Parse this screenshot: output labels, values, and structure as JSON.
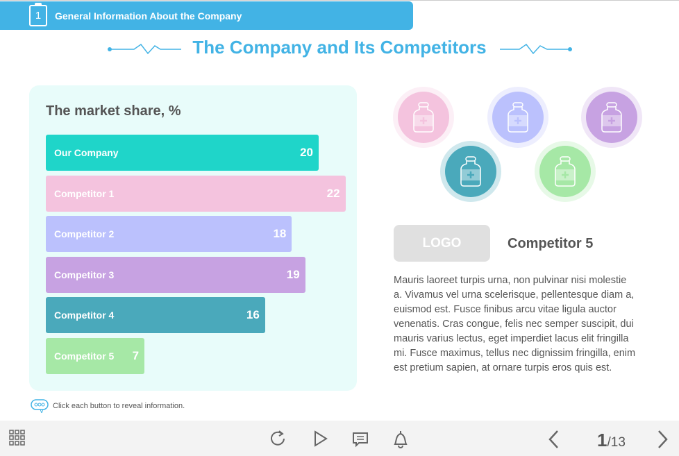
{
  "header": {
    "step": "1",
    "title": "General Information About the Company"
  },
  "title": "The Company and Its Competitors",
  "chart_data": {
    "type": "bar",
    "title": "The market share, %",
    "categories": [
      "Our Company",
      "Competitor 1",
      "Competitor 2",
      "Competitor 3",
      "Competitor 4",
      "Competitor 5"
    ],
    "values": [
      20,
      22,
      18,
      19,
      16,
      7
    ],
    "colors": [
      "#1fd5c9",
      "#f4c3de",
      "#bbc1fd",
      "#c7a2e2",
      "#4aa9bb",
      "#a6e8a6"
    ]
  },
  "competitors": {
    "colors": [
      "#f4c3de",
      "#bbc1fd",
      "#c7a2e2",
      "#4aa9bb",
      "#a6e8a6"
    ]
  },
  "detail": {
    "logo": "LOGO",
    "name": "Competitor 5",
    "text": "Mauris laoreet turpis urna, non pulvinar nisi molestie a. Vivamus vel urna scelerisque, pellentesque diam a, euismod est. Fusce finibus arcu vitae ligula auctor venenatis. Cras congue, felis nec semper suscipit, dui mauris varius lectus, eget imperdiet lacus elit fringilla mi. Fusce maximus, tellus nec dignissim fringilla, enim est pretium sapien, at ornare turpis eros quis est."
  },
  "hint": "Click each button to reveal information.",
  "footer": {
    "page": "1",
    "total": "/13"
  }
}
